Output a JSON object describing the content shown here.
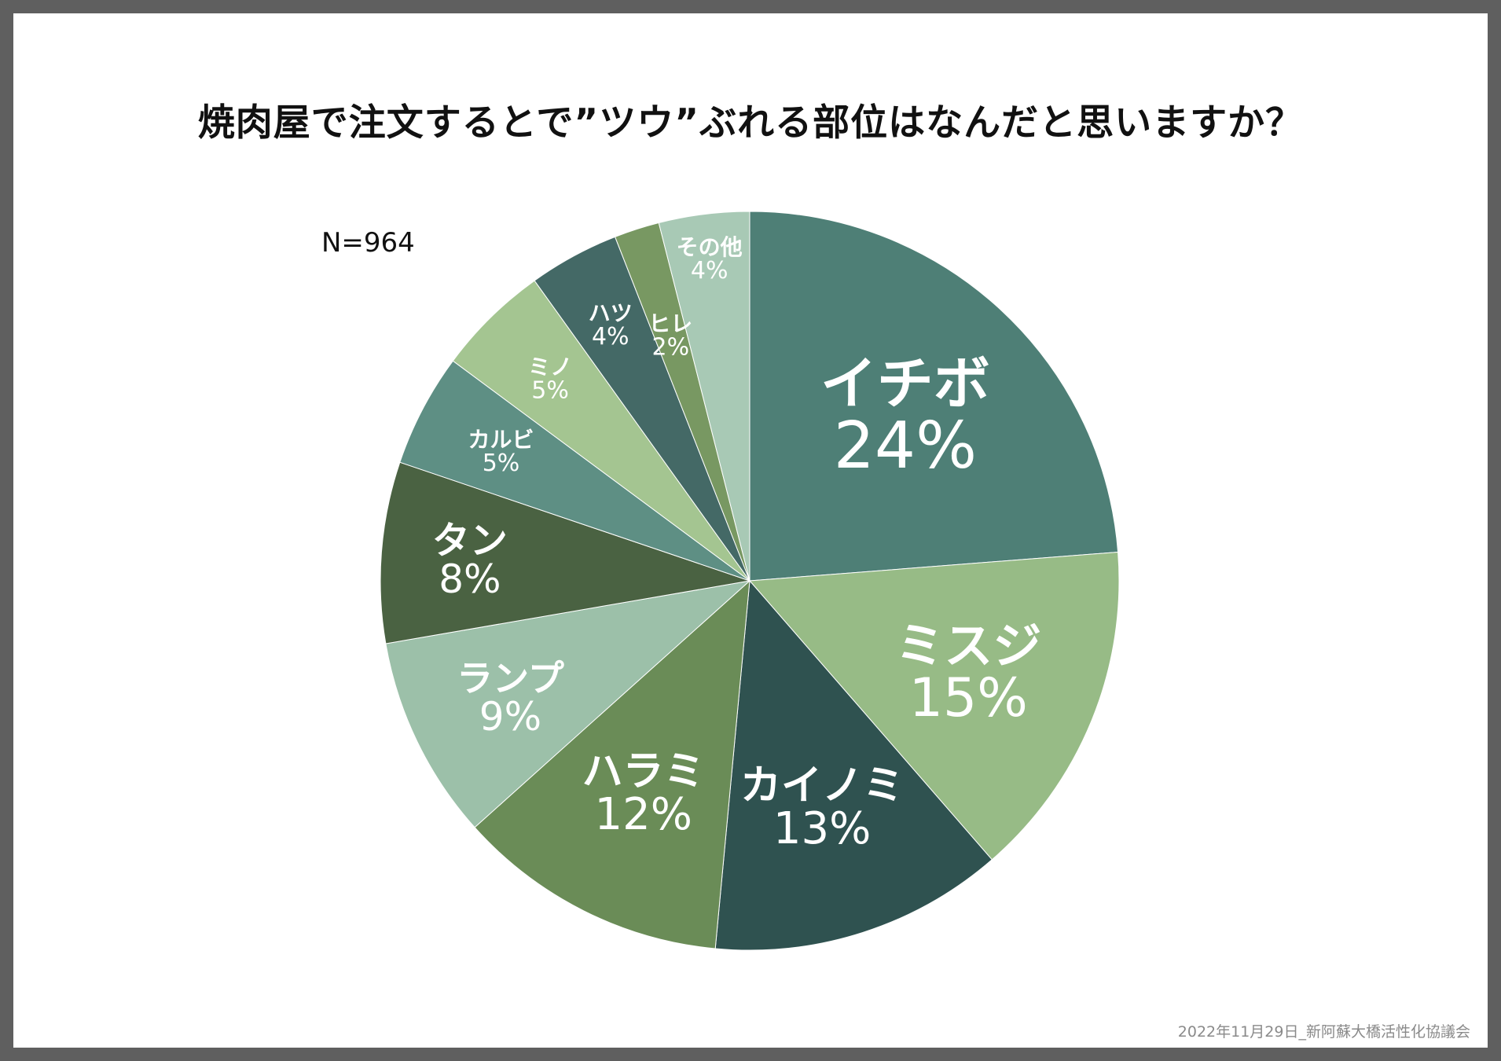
{
  "title": "焼肉屋で注文するとで”ツウ”ぶれる部位はなんだと思いますか？",
  "sample_size": "N=964",
  "footer": "2022年11月29日_新阿蘇大橋活性化協議会",
  "chart_data": {
    "type": "pie",
    "start_angle_deg": 0,
    "direction": "clockwise",
    "slices": [
      {
        "label": "イチボ",
        "value": 24,
        "value_label": "24%",
        "color": "#4e7f76"
      },
      {
        "label": "ミスジ",
        "value": 15,
        "value_label": "15%",
        "color": "#97bb86"
      },
      {
        "label": "カイノミ",
        "value": 13,
        "value_label": "13%",
        "color": "#2f5250"
      },
      {
        "label": "ハラミ",
        "value": 12,
        "value_label": "12%",
        "color": "#6a8c57"
      },
      {
        "label": "ランプ",
        "value": 9,
        "value_label": "9%",
        "color": "#9cc0a9"
      },
      {
        "label": "タン",
        "value": 8,
        "value_label": "8%",
        "color": "#4a6242"
      },
      {
        "label": "カルビ",
        "value": 5,
        "value_label": "5%",
        "color": "#5e8f84"
      },
      {
        "label": "ミノ",
        "value": 5,
        "value_label": "5%",
        "color": "#a4c591"
      },
      {
        "label": "ハツ",
        "value": 4,
        "value_label": "4%",
        "color": "#446966"
      },
      {
        "label": "ヒレ",
        "value": 2,
        "value_label": "2%",
        "color": "#789862"
      },
      {
        "label": "その他",
        "value": 4,
        "value_label": "4%",
        "color": "#a8c9b5"
      }
    ]
  }
}
